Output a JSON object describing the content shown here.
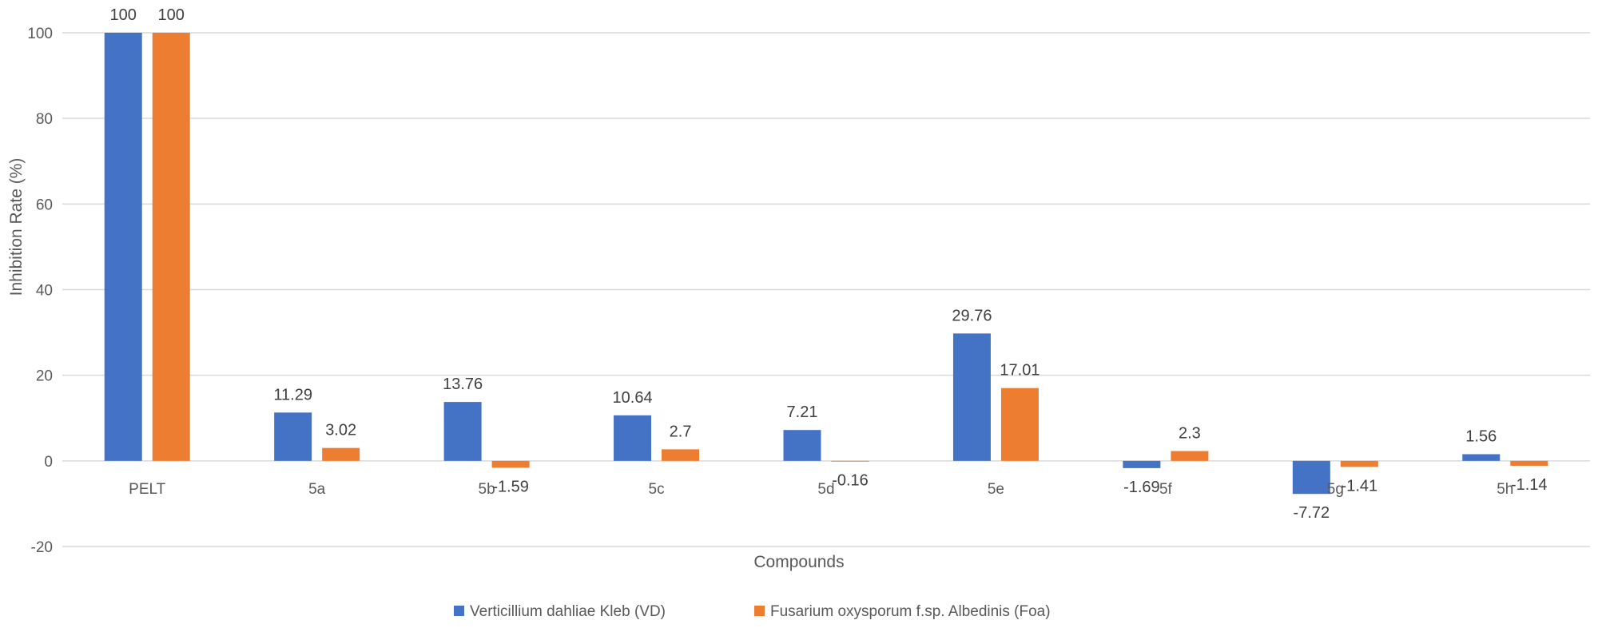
{
  "chart_data": {
    "type": "bar",
    "categories": [
      "PELT",
      "5a",
      "5b",
      "5c",
      "5d",
      "5e",
      "5f",
      "5g",
      "5h"
    ],
    "series": [
      {
        "name": "Verticillium dahliae Kleb (VD)",
        "color": "#4472C4",
        "values": [
          100,
          11.29,
          13.76,
          10.64,
          7.21,
          29.76,
          -1.69,
          -7.72,
          1.56
        ],
        "labels": [
          "100",
          "11.29",
          "13.76",
          "10.64",
          "7.21",
          "29.76",
          "-1.69",
          "-7.72",
          "1.56"
        ]
      },
      {
        "name": "Fusarium oxysporum f.sp. Albedinis (Foa)",
        "color": "#ED7D31",
        "values": [
          100,
          3.02,
          -1.59,
          2.7,
          -0.16,
          17.01,
          2.3,
          -1.41,
          -1.14
        ],
        "labels": [
          "100",
          "3.02",
          "-1.59",
          "2.7",
          "-0.16",
          "17.01",
          "2.3",
          "-1.41",
          "-1.14"
        ]
      }
    ],
    "xlabel": "Compounds",
    "ylabel": "Inhibition Rate (%)",
    "ylim": [
      -20,
      100
    ],
    "yticks": [
      -20,
      0,
      20,
      40,
      60,
      80,
      100
    ],
    "ytick_labels": [
      "-20",
      "0",
      "20",
      "40",
      "60",
      "80",
      "100"
    ],
    "grid": true,
    "gridline_color": "#d9d9d9",
    "legend_position": "bottom"
  }
}
